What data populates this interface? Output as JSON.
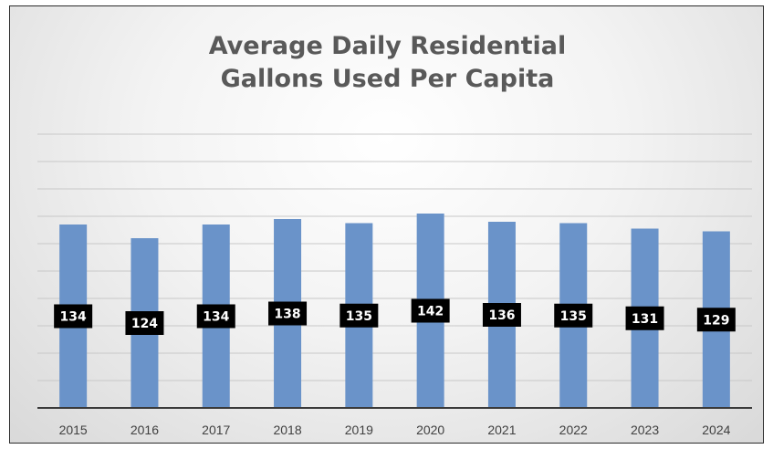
{
  "chart_data": {
    "type": "bar",
    "title": [
      "Average Daily Residential",
      "Gallons Used Per Capita"
    ],
    "categories": [
      "2015",
      "2016",
      "2017",
      "2018",
      "2019",
      "2020",
      "2021",
      "2022",
      "2023",
      "2024"
    ],
    "values": [
      134,
      124,
      134,
      138,
      135,
      142,
      136,
      135,
      131,
      129
    ],
    "ylim": [
      0,
      200
    ],
    "grid": true,
    "bar_color": "#6a93c9",
    "label_bg": "#000000",
    "label_color": "#ffffff"
  }
}
